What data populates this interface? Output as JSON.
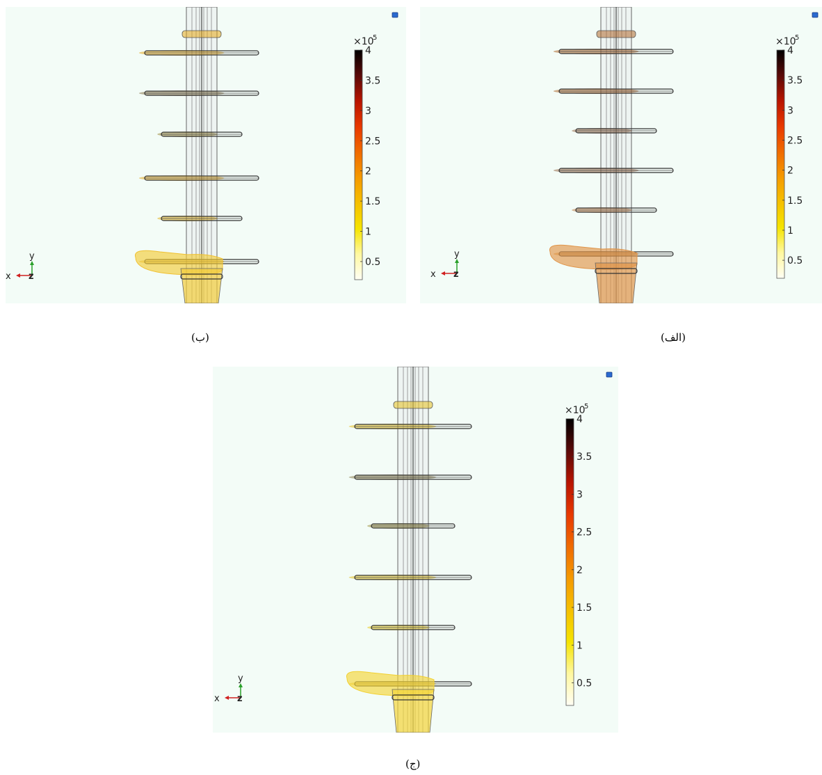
{
  "colorbar": {
    "multiplier": "×10",
    "exponent": "5",
    "ticks": [
      "4",
      "3.5",
      "3",
      "2.5",
      "2",
      "1.5",
      "1",
      "0.5"
    ],
    "tick_values": [
      4,
      3.5,
      3,
      2.5,
      2,
      1.5,
      1,
      0.5
    ],
    "range": [
      0.2,
      4
    ],
    "colors": [
      "#fffef4",
      "#fff8a0",
      "#f5e400",
      "#f5c000",
      "#f59a00",
      "#f06a00",
      "#e83800",
      "#b81400",
      "#5a0a08",
      "#000000"
    ]
  },
  "axes_triad": {
    "x": "x",
    "y": "y",
    "z": "z"
  },
  "panels": [
    {
      "id": "alef",
      "caption": "(الف)",
      "field_color": "#e0954a",
      "shed_colors": [
        "#b06a30",
        "#b06a30",
        "#9a7050",
        "#9a7050",
        "#c0804a",
        "#d8862e"
      ],
      "bulb_color": "#e0954a"
    },
    {
      "id": "be",
      "caption": "(ب)",
      "field_color": "#f0c030",
      "shed_colors": [
        "#e6a81a",
        "#8a7a50",
        "#9a8a40",
        "#e0a820",
        "#e0b020",
        "#e6b020"
      ],
      "bulb_color": "#f2cc3a"
    },
    {
      "id": "jim",
      "caption": "(ج)",
      "field_color": "#f2d030",
      "shed_colors": [
        "#e6c020",
        "#8a8050",
        "#9a9040",
        "#e0c020",
        "#e8c820",
        "#e8c020"
      ],
      "bulb_color": "#f5d63a"
    }
  ]
}
